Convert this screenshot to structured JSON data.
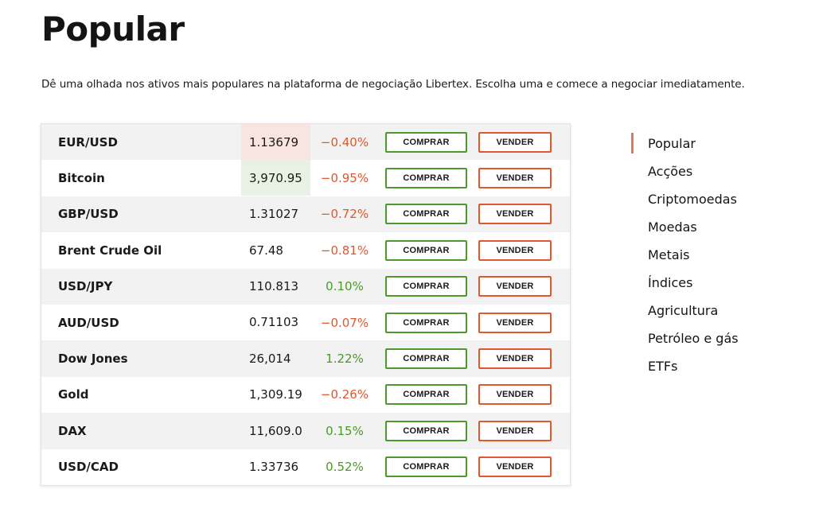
{
  "header": {
    "title": "Popular",
    "subtitle": "Dê uma olhada nos ativos mais populares na plataforma de negociação Libertex. Escolha uma e comece a negociar imediatamente."
  },
  "buttons": {
    "buy_label": "COMPRAR",
    "sell_label": "VENDER"
  },
  "colors": {
    "positive": "#4a9a26",
    "negative": "#e0582c",
    "buy_border": "#4d9a2c",
    "sell_border": "#e0582c",
    "active_indicator": "#e07a5a"
  },
  "assets": [
    {
      "name": "EUR/USD",
      "price": "1.13679",
      "change": "−0.40%",
      "direction": "negative",
      "price_flash": "red"
    },
    {
      "name": "Bitcoin",
      "price": "3,970.95",
      "change": "−0.95%",
      "direction": "negative",
      "price_flash": "green"
    },
    {
      "name": "GBP/USD",
      "price": "1.31027",
      "change": "−0.72%",
      "direction": "negative",
      "price_flash": "none"
    },
    {
      "name": "Brent Crude Oil",
      "price": "67.48",
      "change": "−0.81%",
      "direction": "negative",
      "price_flash": "none"
    },
    {
      "name": "USD/JPY",
      "price": "110.813",
      "change": "0.10%",
      "direction": "positive",
      "price_flash": "none"
    },
    {
      "name": "AUD/USD",
      "price": "0.71103",
      "change": "−0.07%",
      "direction": "negative",
      "price_flash": "none"
    },
    {
      "name": "Dow Jones",
      "price": "26,014",
      "change": "1.22%",
      "direction": "positive",
      "price_flash": "none"
    },
    {
      "name": "Gold",
      "price": "1,309.19",
      "change": "−0.26%",
      "direction": "negative",
      "price_flash": "none"
    },
    {
      "name": "DAX",
      "price": "11,609.0",
      "change": "0.15%",
      "direction": "positive",
      "price_flash": "none"
    },
    {
      "name": "USD/CAD",
      "price": "1.33736",
      "change": "0.52%",
      "direction": "positive",
      "price_flash": "none"
    }
  ],
  "categories": [
    {
      "label": "Popular",
      "active": true
    },
    {
      "label": "Acções",
      "active": false
    },
    {
      "label": "Criptomoedas",
      "active": false
    },
    {
      "label": "Moedas",
      "active": false
    },
    {
      "label": "Metais",
      "active": false
    },
    {
      "label": "Índices",
      "active": false
    },
    {
      "label": "Agricultura",
      "active": false
    },
    {
      "label": "Petróleo e gás",
      "active": false
    },
    {
      "label": "ETFs",
      "active": false
    }
  ]
}
